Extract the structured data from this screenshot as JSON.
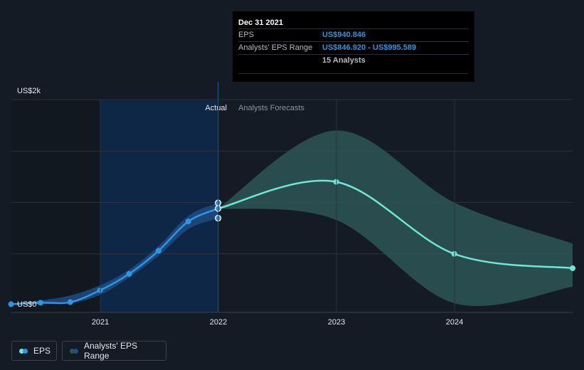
{
  "tooltip": {
    "date": "Dec 31 2021",
    "eps_label": "EPS",
    "eps_value": "US$940.846",
    "range_label": "Analysts' EPS Range",
    "range_value": "US$846.920 - US$995.589",
    "analysts": "15 Analysts"
  },
  "legend": {
    "eps": "EPS",
    "range": "Analysts' EPS Range"
  },
  "colors": {
    "background": "#151b24",
    "actual_region": "#0f2747",
    "actual_line": "#2f95e0",
    "actual_band": "#1f4f86",
    "forecast_line": "#6ee8d4",
    "forecast_band": "#2d5656",
    "grid": "#2b323c"
  },
  "chart_data": {
    "type": "line",
    "y_axis": {
      "labels": [
        "US$2k",
        "US$0"
      ],
      "ylim": [
        0,
        2000
      ]
    },
    "x_axis": {
      "ticks": [
        "2021",
        "2022",
        "2023",
        "2024"
      ],
      "xlim": [
        "2020-04-01",
        "2024-12-31"
      ]
    },
    "sections": {
      "actual": "Actual",
      "forecast": "Analysts Forecasts"
    },
    "series": [
      {
        "name": "EPS",
        "kind": "actual",
        "points": [
          [
            "2020-03-31",
            10
          ],
          [
            "2020-06-30",
            25
          ],
          [
            "2020-09-30",
            30
          ],
          [
            "2020-12-31",
            145
          ],
          [
            "2021-03-31",
            305
          ],
          [
            "2021-06-30",
            530
          ],
          [
            "2021-09-30",
            815
          ],
          [
            "2021-12-31",
            941
          ]
        ]
      },
      {
        "name": "EPS",
        "kind": "forecast",
        "points": [
          [
            "2021-12-31",
            941
          ],
          [
            "2022-12-31",
            1200
          ],
          [
            "2023-12-31",
            500
          ],
          [
            "2024-12-31",
            360
          ]
        ]
      }
    ],
    "ranges": [
      {
        "name": "Analysts' EPS Range",
        "kind": "actual",
        "low": [
          [
            "2020-03-31",
            5
          ],
          [
            "2020-06-30",
            15
          ],
          [
            "2020-09-30",
            20
          ],
          [
            "2020-12-31",
            100
          ],
          [
            "2021-03-31",
            270
          ],
          [
            "2021-06-30",
            480
          ],
          [
            "2021-09-30",
            740
          ],
          [
            "2021-12-31",
            847
          ]
        ],
        "high": [
          [
            "2020-03-31",
            15
          ],
          [
            "2020-06-30",
            45
          ],
          [
            "2020-09-30",
            95
          ],
          [
            "2020-12-31",
            195
          ],
          [
            "2021-03-31",
            345
          ],
          [
            "2021-06-30",
            575
          ],
          [
            "2021-09-30",
            870
          ],
          [
            "2021-12-31",
            996
          ]
        ]
      },
      {
        "name": "Analysts' EPS Range",
        "kind": "forecast",
        "low": [
          [
            "2021-12-31",
            941
          ],
          [
            "2022-12-31",
            830
          ],
          [
            "2023-12-31",
            20
          ],
          [
            "2024-12-31",
            180
          ]
        ],
        "high": [
          [
            "2021-12-31",
            941
          ],
          [
            "2022-12-31",
            1700
          ],
          [
            "2023-12-31",
            1000
          ],
          [
            "2024-12-31",
            600
          ]
        ]
      }
    ],
    "highlight_points": [
      [
        "2021-12-31",
        996
      ],
      [
        "2021-12-31",
        941
      ],
      [
        "2021-12-31",
        847
      ]
    ]
  }
}
